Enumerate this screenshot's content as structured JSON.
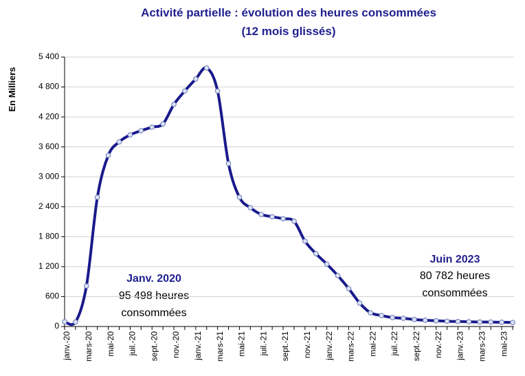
{
  "chart_data": {
    "type": "line",
    "title": "Activité partielle : évolution des heures consommées",
    "subtitle": "(12 mois glissés)",
    "y_label": "En Milliers",
    "categories": [
      "janv.-20",
      null,
      "mars-20",
      null,
      "mai-20",
      null,
      "juil.-20",
      null,
      "sept.-20",
      null,
      "nov.-20",
      null,
      "janv.-21",
      null,
      "mars-21",
      null,
      "mai-21",
      null,
      "juil.-21",
      null,
      "sept.-21",
      null,
      "nov.-21",
      null,
      "janv.-22",
      null,
      "mars-22",
      null,
      "mai-22",
      null,
      "juil.-22",
      null,
      "sept.-22",
      null,
      "nov.-22",
      null,
      "janv.-23",
      null,
      "mars-23",
      null,
      "mai-23",
      null
    ],
    "series": [
      {
        "name": "Heures consommées",
        "color": "#1a1a8c",
        "values": [
          95.498,
          90,
          812,
          2590,
          3430,
          3700,
          3840,
          3925,
          3995,
          4060,
          4450,
          4720,
          4960,
          5180,
          4720,
          3265,
          2590,
          2380,
          2245,
          2200,
          2160,
          2110,
          1710,
          1460,
          1250,
          1020,
          760,
          470,
          275,
          220,
          180,
          165,
          140,
          125,
          115,
          105,
          100,
          95,
          90,
          88,
          85,
          80.782
        ]
      }
    ],
    "ylim": [
      0,
      5400
    ],
    "yticks": [
      0,
      600,
      {
        "value": 1200,
        "label": "1 200"
      },
      {
        "value": 1800,
        "label": "1 800"
      },
      {
        "value": 2400,
        "label": "2 400"
      },
      {
        "value": 3000,
        "label": "3 000"
      },
      {
        "value": 3600,
        "label": "3 600"
      },
      {
        "value": 4200,
        "label": "4 200"
      },
      {
        "value": 4800,
        "label": "4 800"
      },
      {
        "value": 5400,
        "label": "5 400"
      }
    ],
    "grid": true,
    "annotations": [
      {
        "lines": [
          "Janv. 2020",
          "95 498 heures",
          "consommées"
        ]
      },
      {
        "lines": [
          "Juin 2023",
          "80 782 heures",
          "consommées"
        ]
      }
    ]
  }
}
